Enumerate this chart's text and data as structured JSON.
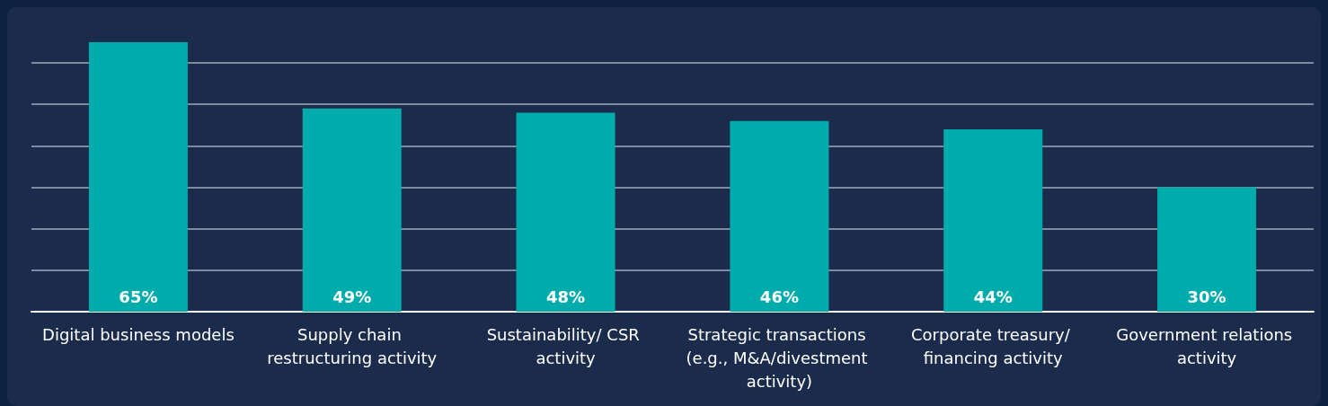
{
  "chart_data": {
    "type": "bar",
    "categories": [
      "Digital business models",
      "Supply chain restructuring activity",
      "Sustainability/ CSR activity",
      "Strategic transactions (e.g., M&A/divestment activity)",
      "Corporate treasury/ financing activity",
      "Government relations activity"
    ],
    "values": [
      65,
      49,
      48,
      46,
      44,
      30
    ],
    "value_labels": [
      "65%",
      "49%",
      "48%",
      "46%",
      "44%",
      "30%"
    ],
    "color": "#00abab",
    "ylim": [
      0,
      65
    ],
    "yticks": [
      {
        "value": 0,
        "label": null
      },
      {
        "value": 10,
        "label": null
      },
      {
        "value": 20,
        "label": null
      },
      {
        "value": 30,
        "label": null
      },
      {
        "value": 40,
        "label": null
      },
      {
        "value": 50,
        "label": null
      },
      {
        "value": 60,
        "label": null
      }
    ],
    "grid": "y",
    "tick_labels": "x"
  }
}
